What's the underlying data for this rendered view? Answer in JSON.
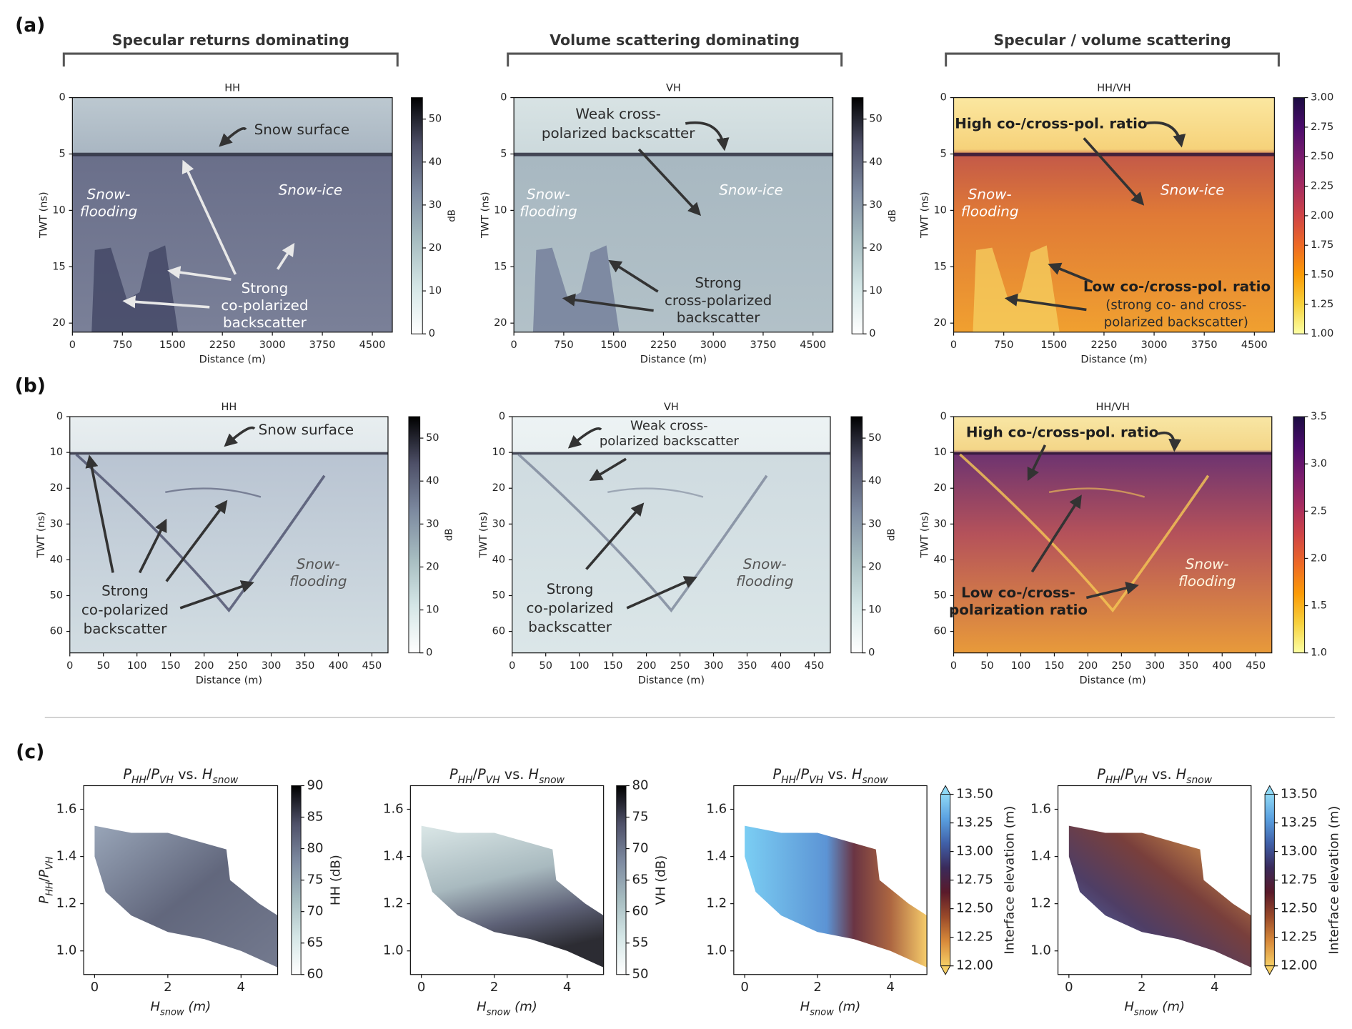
{
  "chart_data": [
    {
      "type": "radargram",
      "panel_label": "(a)",
      "group_title": "Specular returns dominating",
      "title": "HH",
      "xlabel": "Distance (m)",
      "ylabel": "TWT (ns)",
      "xlim": [
        0,
        4800
      ],
      "ylim": [
        20.8,
        0
      ],
      "xticks": [
        0,
        750,
        1500,
        2250,
        3000,
        3750,
        4500
      ],
      "yticks": [
        0,
        5,
        10,
        15,
        20
      ],
      "colorbar": {
        "label": "dB",
        "lim": [
          0,
          55
        ],
        "ticks": [
          0,
          10,
          20,
          30,
          40,
          50
        ],
        "colormap": "bone_r"
      },
      "annotations": [
        {
          "lines": [
            "Snow surface"
          ]
        },
        {
          "lines": [
            "Snow-",
            "flooding"
          ]
        },
        {
          "lines": [
            "Snow-ice"
          ]
        },
        {
          "lines": [
            "Strong",
            "co-polarized",
            "backscatter"
          ]
        }
      ]
    },
    {
      "type": "radargram",
      "group_title": "Volume scattering dominating",
      "title": "VH",
      "xlabel": "Distance (m)",
      "ylabel": "TWT (ns)",
      "xlim": [
        0,
        4800
      ],
      "ylim": [
        20.8,
        0
      ],
      "xticks": [
        0,
        750,
        1500,
        2250,
        3000,
        3750,
        4500
      ],
      "yticks": [
        0,
        5,
        10,
        15,
        20
      ],
      "colorbar": {
        "label": "dB",
        "lim": [
          0,
          55
        ],
        "ticks": [
          0,
          10,
          20,
          30,
          40,
          50
        ],
        "colormap": "bone_r"
      },
      "annotations": [
        {
          "lines": [
            "Weak cross-",
            "polarized backscatter"
          ]
        },
        {
          "lines": [
            "Snow-",
            "flooding"
          ]
        },
        {
          "lines": [
            "Snow-ice"
          ]
        },
        {
          "lines": [
            "Strong",
            "cross-polarized",
            "backscatter"
          ]
        }
      ]
    },
    {
      "type": "radargram",
      "group_title": "Specular / volume scattering",
      "title": "HH/VH",
      "xlabel": "Distance (m)",
      "ylabel": "TWT (ns)",
      "xlim": [
        0,
        4800
      ],
      "ylim": [
        20.8,
        0
      ],
      "xticks": [
        0,
        750,
        1500,
        2250,
        3000,
        3750,
        4500
      ],
      "yticks": [
        0,
        5,
        10,
        15,
        20
      ],
      "colorbar": {
        "lim": [
          1,
          3
        ],
        "ticks": [
          {
            "value": 1,
            "label": "1.00"
          },
          {
            "value": 1.25,
            "label": "1.25"
          },
          {
            "value": 1.5,
            "label": "1.50"
          },
          {
            "value": 1.75,
            "label": "1.75"
          },
          {
            "value": 2,
            "label": "2.00"
          },
          {
            "value": 2.25,
            "label": "2.25"
          },
          {
            "value": 2.5,
            "label": "2.50"
          },
          {
            "value": 2.75,
            "label": "2.75"
          },
          {
            "value": 3,
            "label": "3.00"
          }
        ],
        "colormap": "inferno_r"
      },
      "annotations": [
        {
          "lines": [
            "High co-/cross-pol. ratio"
          ]
        },
        {
          "lines": [
            "Snow-",
            "flooding"
          ]
        },
        {
          "lines": [
            "Snow-ice"
          ]
        },
        {
          "lines": [
            "Low co-/cross-pol. ratio"
          ]
        },
        {
          "lines": [
            "(strong co- and cross-",
            "polarized backscatter)"
          ]
        }
      ]
    },
    {
      "type": "radargram",
      "panel_label": "(b)",
      "title": "HH",
      "xlabel": "Distance (m)",
      "ylabel": "TWT (ns)",
      "xlim": [
        0,
        474
      ],
      "ylim": [
        66,
        0
      ],
      "xticks": [
        0,
        50,
        100,
        150,
        200,
        250,
        300,
        350,
        400,
        450
      ],
      "yticks": [
        0,
        10,
        20,
        30,
        40,
        50,
        60
      ],
      "colorbar": {
        "label": "dB",
        "lim": [
          0,
          55
        ],
        "ticks": [
          0,
          10,
          20,
          30,
          40,
          50
        ],
        "colormap": "bone_r"
      },
      "annotations": [
        {
          "lines": [
            "Snow surface"
          ]
        },
        {
          "lines": [
            "Snow-",
            "flooding"
          ]
        },
        {
          "lines": [
            "Strong",
            "co-polarized",
            "backscatter"
          ]
        }
      ]
    },
    {
      "type": "radargram",
      "title": "VH",
      "xlabel": "Distance (m)",
      "ylabel": "TWT (ns)",
      "xlim": [
        0,
        474
      ],
      "ylim": [
        66,
        0
      ],
      "xticks": [
        0,
        50,
        100,
        150,
        200,
        250,
        300,
        350,
        400,
        450
      ],
      "yticks": [
        0,
        10,
        20,
        30,
        40,
        50,
        60
      ],
      "colorbar": {
        "label": "dB",
        "lim": [
          0,
          55
        ],
        "ticks": [
          0,
          10,
          20,
          30,
          40,
          50
        ],
        "colormap": "bone_r"
      },
      "annotations": [
        {
          "lines": [
            "Weak  cross-",
            "polarized  backscatter"
          ]
        },
        {
          "lines": [
            "Strong",
            "co-polarized",
            "backscatter"
          ]
        },
        {
          "lines": [
            "Snow-",
            "flooding"
          ]
        }
      ]
    },
    {
      "type": "radargram",
      "title": "HH/VH",
      "xlabel": "Distance (m)",
      "ylabel": "TWT (ns)",
      "xlim": [
        0,
        474
      ],
      "ylim": [
        66,
        0
      ],
      "xticks": [
        0,
        50,
        100,
        150,
        200,
        250,
        300,
        350,
        400,
        450
      ],
      "yticks": [
        0,
        10,
        20,
        30,
        40,
        50,
        60
      ],
      "colorbar": {
        "lim": [
          1,
          3.5
        ],
        "ticks": [
          {
            "value": 1,
            "label": "1.0"
          },
          {
            "value": 1.5,
            "label": "1.5"
          },
          {
            "value": 2,
            "label": "2.0"
          },
          {
            "value": 2.5,
            "label": "2.5"
          },
          {
            "value": 3,
            "label": "3.0"
          },
          {
            "value": 3.5,
            "label": "3.5"
          }
        ],
        "colormap": "inferno_r"
      },
      "annotations": [
        {
          "lines": [
            "High co-/cross-pol. ratio"
          ]
        },
        {
          "lines": [
            "Low co-/cross-",
            "polarization ratio"
          ]
        },
        {
          "lines": [
            "Snow-",
            "flooding"
          ]
        }
      ]
    },
    {
      "type": "scatter",
      "panel_label": "(c)",
      "title": [
        {
          "text": "P",
          "italic": true
        },
        {
          "text": "HH",
          "sub": true
        },
        {
          "text": "/"
        },
        {
          "text": "P",
          "italic": true
        },
        {
          "text": "VH",
          "sub": true
        },
        {
          "text": " vs. "
        },
        {
          "text": "H",
          "italic": true
        },
        {
          "text": "snow",
          "sub": true
        }
      ],
      "xlabel": [
        {
          "text": "H",
          "italic": true
        },
        {
          "text": "snow",
          "sub": true
        },
        {
          "text": " (m)",
          "italic": true
        }
      ],
      "ylabel": [
        {
          "text": "P",
          "italic": true
        },
        {
          "text": "HH",
          "sub": true
        },
        {
          "text": "/"
        },
        {
          "text": "P",
          "italic": true
        },
        {
          "text": "VH",
          "sub": true
        }
      ],
      "xlim": [
        -0.3,
        5
      ],
      "ylim": [
        0.9,
        1.7
      ],
      "xticks": [
        0,
        2,
        4
      ],
      "yticks": [
        {
          "value": 1,
          "label": "1.0"
        },
        {
          "value": 1.2,
          "label": "1.2"
        },
        {
          "value": 1.4,
          "label": "1.4"
        },
        {
          "value": 1.6,
          "label": "1.6"
        }
      ],
      "colorbar": {
        "label": "HH (dB)",
        "lim": [
          60,
          90
        ],
        "ticks": [
          60,
          65,
          70,
          75,
          80,
          85,
          90
        ],
        "colormap": "bone_r"
      }
    },
    {
      "type": "scatter",
      "title": [
        {
          "text": "P",
          "italic": true
        },
        {
          "text": "HH",
          "sub": true
        },
        {
          "text": "/"
        },
        {
          "text": "P",
          "italic": true
        },
        {
          "text": "VH",
          "sub": true
        },
        {
          "text": " vs. "
        },
        {
          "text": "H",
          "italic": true
        },
        {
          "text": "snow",
          "sub": true
        }
      ],
      "xlabel": [
        {
          "text": "H",
          "italic": true
        },
        {
          "text": "snow",
          "sub": true
        },
        {
          "text": " (m)",
          "italic": true
        }
      ],
      "xlim": [
        -0.3,
        5
      ],
      "ylim": [
        0.9,
        1.7
      ],
      "xticks": [
        0,
        2,
        4
      ],
      "yticks": [
        {
          "value": 1,
          "label": "1.0"
        },
        {
          "value": 1.2,
          "label": "1.2"
        },
        {
          "value": 1.4,
          "label": "1.4"
        },
        {
          "value": 1.6,
          "label": "1.6"
        }
      ],
      "colorbar": {
        "label": "VH (dB)",
        "lim": [
          50,
          80
        ],
        "ticks": [
          50,
          55,
          60,
          65,
          70,
          75,
          80
        ],
        "colormap": "bone_r"
      }
    },
    {
      "type": "scatter",
      "title": [
        {
          "text": "P",
          "italic": true
        },
        {
          "text": "HH",
          "sub": true
        },
        {
          "text": "/"
        },
        {
          "text": "P",
          "italic": true
        },
        {
          "text": "VH",
          "sub": true
        },
        {
          "text": " vs. "
        },
        {
          "text": "H",
          "italic": true
        },
        {
          "text": "snow",
          "sub": true
        }
      ],
      "xlabel": [
        {
          "text": "H",
          "italic": true
        },
        {
          "text": "snow",
          "sub": true
        },
        {
          "text": " (m)",
          "italic": true
        }
      ],
      "xlim": [
        -0.3,
        5
      ],
      "ylim": [
        0.9,
        1.7
      ],
      "xticks": [
        0,
        2,
        4
      ],
      "yticks": [
        {
          "value": 1,
          "label": "1.0"
        },
        {
          "value": 1.2,
          "label": "1.2"
        },
        {
          "value": 1.4,
          "label": "1.4"
        },
        {
          "value": 1.6,
          "label": "1.6"
        }
      ],
      "colorbar": {
        "label": "Interface elevation (m)",
        "lim": [
          12,
          13.5
        ],
        "extend": true,
        "ticks": [
          {
            "value": 12,
            "label": "12.00"
          },
          {
            "value": 12.25,
            "label": "12.25"
          },
          {
            "value": 12.5,
            "label": "12.50"
          },
          {
            "value": 12.75,
            "label": "12.75"
          },
          {
            "value": 13,
            "label": "13.00"
          },
          {
            "value": 13.25,
            "label": "13.25"
          },
          {
            "value": 13.5,
            "label": "13.50"
          }
        ],
        "colormap": "elevation"
      }
    },
    {
      "type": "scatter",
      "title": [
        {
          "text": "P",
          "italic": true
        },
        {
          "text": "HH",
          "sub": true
        },
        {
          "text": "/"
        },
        {
          "text": "P",
          "italic": true
        },
        {
          "text": "VH",
          "sub": true
        },
        {
          "text": " vs. "
        },
        {
          "text": "H",
          "italic": true
        },
        {
          "text": "snow",
          "sub": true
        }
      ],
      "xlabel": [
        {
          "text": "H",
          "italic": true
        },
        {
          "text": "snow",
          "sub": true
        },
        {
          "text": " (m)",
          "italic": true
        }
      ],
      "xlim": [
        -0.3,
        5
      ],
      "ylim": [
        0.9,
        1.7
      ],
      "xticks": [
        0,
        2,
        4
      ],
      "yticks": [
        {
          "value": 1,
          "label": "1.0"
        },
        {
          "value": 1.2,
          "label": "1.2"
        },
        {
          "value": 1.4,
          "label": "1.4"
        },
        {
          "value": 1.6,
          "label": "1.6"
        }
      ],
      "colorbar": {
        "label": "Interface elevation (m)",
        "lim": [
          12,
          13.5
        ],
        "extend": true,
        "ticks": [
          {
            "value": 12,
            "label": "12.00"
          },
          {
            "value": 12.25,
            "label": "12.25"
          },
          {
            "value": 12.5,
            "label": "12.50"
          },
          {
            "value": 12.75,
            "label": "12.75"
          },
          {
            "value": 13,
            "label": "13.00"
          },
          {
            "value": 13.25,
            "label": "13.25"
          },
          {
            "value": 13.5,
            "label": "13.50"
          }
        ],
        "colormap": "elevation"
      }
    }
  ]
}
